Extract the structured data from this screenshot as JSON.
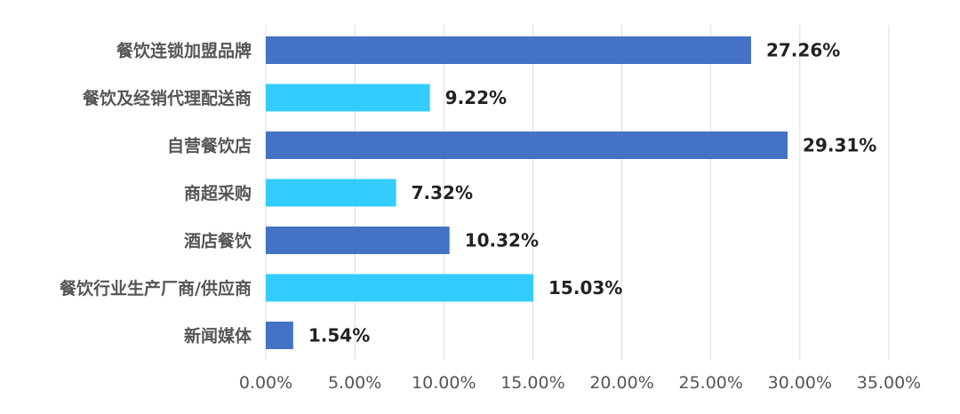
{
  "chart_data": {
    "type": "bar",
    "orientation": "horizontal",
    "title": "",
    "xlabel": "",
    "ylabel": "",
    "categories": [
      "餐饮连锁加盟品牌",
      "餐饮及经销代理配送商",
      "自营餐饮店",
      "商超采购",
      "酒店餐饮",
      "餐饮行业生产厂商/供应商",
      "新闻媒体"
    ],
    "values": [
      27.26,
      9.22,
      29.31,
      7.32,
      10.32,
      15.03,
      1.54
    ],
    "value_labels": [
      "27.26%",
      "9.22%",
      "29.31%",
      "7.32%",
      "10.32%",
      "15.03%",
      "1.54%"
    ],
    "xlim": [
      0,
      35
    ],
    "x_ticks": [
      0,
      5,
      10,
      15,
      20,
      25,
      30,
      35
    ],
    "x_tick_labels": [
      "0.00%",
      "5.00%",
      "10.00%",
      "15.00%",
      "20.00%",
      "25.00%",
      "30.00%",
      "35.00%"
    ],
    "grid": true,
    "legend": "none",
    "colors": [
      "#4472C4",
      "#33CCFF",
      "#4472C4",
      "#33CCFF",
      "#4472C4",
      "#33CCFF",
      "#4472C4"
    ]
  }
}
